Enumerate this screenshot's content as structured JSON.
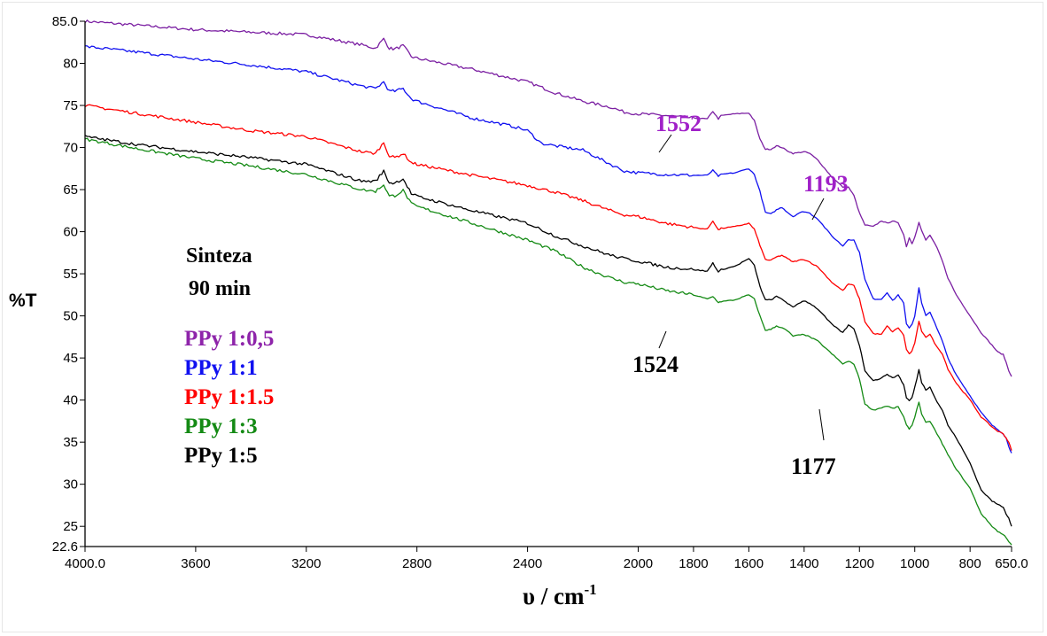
{
  "chart_data": {
    "type": "line",
    "title": "",
    "xlabel": "υ / cm",
    "xlabel_sup": "-1",
    "ylabel": "%T",
    "xlim": [
      4000.0,
      650.0
    ],
    "ylim": [
      22.6,
      85.0
    ],
    "x_reversed": true,
    "grid": false,
    "x_ticks": [
      4000.0,
      3600,
      3200,
      2800,
      2400,
      2000,
      1800,
      1600,
      1400,
      1200,
      1000,
      800,
      650.0
    ],
    "x_tick_labels": [
      "4000.0",
      "3600",
      "3200",
      "2800",
      "2400",
      "2000",
      "1800",
      "1600",
      "1400",
      "1200",
      "1000",
      "800",
      "650.0"
    ],
    "y_ticks": [
      22.6,
      25,
      30,
      35,
      40,
      45,
      50,
      55,
      60,
      65,
      70,
      75,
      80,
      85.0
    ],
    "y_tick_labels": [
      "22.6",
      "25",
      "30",
      "35",
      "40",
      "45",
      "50",
      "55",
      "60",
      "65",
      "70",
      "75",
      "80",
      "85.0"
    ],
    "legend_title": [
      "Sinteza",
      "90 min"
    ],
    "legend_position": "left",
    "series": [
      {
        "name": "PPy 1:0,5",
        "color": "#7b1fa2",
        "x": [
          4000,
          3800,
          3600,
          3400,
          3200,
          3000,
          2950,
          2920,
          2900,
          2880,
          2850,
          2820,
          2800,
          2600,
          2400,
          2300,
          2200,
          2100,
          2050,
          2000,
          1900,
          1800,
          1750,
          1730,
          1710,
          1700,
          1650,
          1600,
          1580,
          1560,
          1540,
          1520,
          1500,
          1480,
          1460,
          1440,
          1420,
          1400,
          1380,
          1350,
          1300,
          1260,
          1240,
          1220,
          1200,
          1180,
          1150,
          1120,
          1100,
          1080,
          1060,
          1040,
          1030,
          1020,
          1010,
          1000,
          985,
          975,
          960,
          945,
          920,
          900,
          880,
          850,
          800,
          760,
          720,
          700,
          680,
          670,
          660,
          650
        ],
        "y": [
          85.0,
          84.5,
          84.0,
          83.7,
          83.4,
          82.2,
          81.8,
          82.9,
          81.8,
          81.7,
          82.1,
          80.8,
          80.6,
          79.3,
          77.8,
          76.5,
          75.5,
          74.8,
          74.2,
          74.0,
          73.8,
          73.5,
          73.4,
          74.3,
          73.4,
          73.8,
          74.0,
          74.1,
          73.2,
          71.0,
          69.8,
          69.8,
          70.2,
          70.0,
          69.6,
          69.3,
          69.4,
          69.5,
          69.3,
          68.5,
          66.5,
          65.3,
          65.3,
          64.3,
          62.2,
          60.8,
          60.6,
          61.3,
          61.0,
          61.3,
          61.0,
          59.7,
          58.2,
          59.3,
          58.6,
          59.4,
          61.1,
          60.1,
          59.0,
          59.6,
          58.1,
          56.5,
          54.5,
          52.5,
          50.0,
          48.0,
          46.5,
          45.7,
          45.4,
          44.5,
          43.5,
          42.8
        ]
      },
      {
        "name": "PPy 1:1",
        "color": "#1010f0",
        "x": [
          4000,
          3800,
          3600,
          3400,
          3200,
          3000,
          2950,
          2920,
          2900,
          2880,
          2850,
          2820,
          2800,
          2600,
          2450,
          2400,
          2350,
          2300,
          2200,
          2100,
          2050,
          2000,
          1900,
          1800,
          1750,
          1730,
          1710,
          1700,
          1650,
          1600,
          1580,
          1560,
          1540,
          1520,
          1500,
          1480,
          1460,
          1440,
          1420,
          1400,
          1380,
          1350,
          1300,
          1260,
          1240,
          1220,
          1200,
          1180,
          1150,
          1120,
          1100,
          1080,
          1060,
          1040,
          1030,
          1020,
          1010,
          1000,
          985,
          975,
          960,
          945,
          920,
          900,
          880,
          850,
          800,
          760,
          720,
          700,
          680,
          670,
          660,
          650
        ],
        "y": [
          82.0,
          81.3,
          80.5,
          79.8,
          79.0,
          77.3,
          77.0,
          77.8,
          76.7,
          76.7,
          77.0,
          75.8,
          75.5,
          73.5,
          72.5,
          72.0,
          70.5,
          70.2,
          69.7,
          68.0,
          67.2,
          67.0,
          66.8,
          66.7,
          66.7,
          67.3,
          66.6,
          66.8,
          67.0,
          67.5,
          66.8,
          64.8,
          62.3,
          62.1,
          62.6,
          62.9,
          62.3,
          61.8,
          62.2,
          62.4,
          62.2,
          61.5,
          59.5,
          58.3,
          59.1,
          59.0,
          57.5,
          54.3,
          52.0,
          52.0,
          52.8,
          51.8,
          52.5,
          51.5,
          49.0,
          48.6,
          49.0,
          50.0,
          53.3,
          51.5,
          50.0,
          50.5,
          48.5,
          47.0,
          45.0,
          43.0,
          40.5,
          38.5,
          37.0,
          36.5,
          36.0,
          35.5,
          34.5,
          33.7
        ]
      },
      {
        "name": "PPy 1:1.5",
        "color": "#ff0000",
        "x": [
          4000,
          3800,
          3600,
          3400,
          3200,
          3000,
          2950,
          2920,
          2900,
          2880,
          2850,
          2820,
          2800,
          2600,
          2400,
          2300,
          2200,
          2100,
          2050,
          2000,
          1900,
          1800,
          1750,
          1730,
          1710,
          1700,
          1650,
          1600,
          1580,
          1560,
          1540,
          1520,
          1500,
          1480,
          1460,
          1440,
          1420,
          1400,
          1380,
          1350,
          1300,
          1260,
          1240,
          1220,
          1200,
          1180,
          1150,
          1120,
          1100,
          1080,
          1060,
          1040,
          1030,
          1020,
          1010,
          1000,
          985,
          975,
          960,
          945,
          920,
          900,
          880,
          850,
          800,
          760,
          720,
          700,
          680,
          670,
          660,
          650
        ],
        "y": [
          75.0,
          74.0,
          73.0,
          72.0,
          71.3,
          69.5,
          69.3,
          70.6,
          69.0,
          68.8,
          69.3,
          68.2,
          68.0,
          66.7,
          65.5,
          64.7,
          63.7,
          62.5,
          62.0,
          61.8,
          61.0,
          60.5,
          60.3,
          61.3,
          60.2,
          60.4,
          60.6,
          61.0,
          60.3,
          58.4,
          56.7,
          56.6,
          57.0,
          57.2,
          56.8,
          56.4,
          56.6,
          56.7,
          56.4,
          55.8,
          54.0,
          53.0,
          53.8,
          53.6,
          52.0,
          49.3,
          47.9,
          47.8,
          48.8,
          48.1,
          48.6,
          47.7,
          46.0,
          45.5,
          45.8,
          46.8,
          49.3,
          48.2,
          47.5,
          47.8,
          46.3,
          45.5,
          43.7,
          42.0,
          40.0,
          38.0,
          36.8,
          36.3,
          36.0,
          35.5,
          35.0,
          34.0
        ]
      },
      {
        "name": "PPy 1:3",
        "color": "#148a14",
        "x": [
          4000,
          3800,
          3600,
          3400,
          3200,
          3000,
          2950,
          2920,
          2900,
          2880,
          2850,
          2820,
          2800,
          2600,
          2400,
          2300,
          2200,
          2100,
          2050,
          2000,
          1900,
          1800,
          1750,
          1730,
          1710,
          1700,
          1650,
          1600,
          1580,
          1560,
          1540,
          1520,
          1500,
          1480,
          1460,
          1440,
          1420,
          1400,
          1380,
          1350,
          1300,
          1260,
          1240,
          1220,
          1200,
          1180,
          1150,
          1120,
          1100,
          1080,
          1060,
          1040,
          1030,
          1020,
          1010,
          1000,
          985,
          975,
          960,
          945,
          920,
          900,
          880,
          850,
          800,
          760,
          720,
          700,
          680,
          670,
          660,
          650
        ],
        "y": [
          71.0,
          69.8,
          68.7,
          67.8,
          66.8,
          65.0,
          64.8,
          65.6,
          64.2,
          64.3,
          64.9,
          63.3,
          63.0,
          61.0,
          59.0,
          57.7,
          55.8,
          54.5,
          54.0,
          53.8,
          53.0,
          52.5,
          52.0,
          52.3,
          51.6,
          51.7,
          51.9,
          52.5,
          52.0,
          50.0,
          48.3,
          48.4,
          48.8,
          48.6,
          48.2,
          47.6,
          47.7,
          47.8,
          47.5,
          47.0,
          45.5,
          44.3,
          44.6,
          44.3,
          42.5,
          39.5,
          38.8,
          39.1,
          39.3,
          39.0,
          39.2,
          38.0,
          37.0,
          36.6,
          37.0,
          38.0,
          39.8,
          38.3,
          37.3,
          37.5,
          36.0,
          34.8,
          33.5,
          31.8,
          29.5,
          26.5,
          25.0,
          24.4,
          24.0,
          23.7,
          23.2,
          22.8
        ]
      },
      {
        "name": "PPy 1:5",
        "color": "#000000",
        "x": [
          4000,
          3800,
          3600,
          3400,
          3200,
          3000,
          2950,
          2920,
          2900,
          2880,
          2850,
          2820,
          2800,
          2600,
          2400,
          2300,
          2200,
          2100,
          2050,
          2000,
          1900,
          1800,
          1750,
          1730,
          1710,
          1700,
          1650,
          1600,
          1580,
          1560,
          1540,
          1520,
          1500,
          1480,
          1460,
          1440,
          1420,
          1400,
          1380,
          1350,
          1300,
          1260,
          1240,
          1220,
          1200,
          1180,
          1150,
          1120,
          1100,
          1080,
          1060,
          1040,
          1030,
          1020,
          1010,
          1000,
          985,
          975,
          960,
          945,
          920,
          900,
          880,
          850,
          800,
          760,
          720,
          700,
          680,
          670,
          660,
          650
        ],
        "y": [
          71.3,
          70.3,
          69.5,
          68.8,
          68.0,
          66.0,
          66.0,
          67.2,
          65.8,
          65.8,
          66.3,
          64.5,
          64.2,
          62.5,
          61.0,
          59.5,
          58.3,
          57.2,
          56.8,
          56.5,
          55.8,
          55.5,
          55.3,
          56.3,
          55.2,
          55.5,
          55.9,
          56.8,
          56.0,
          53.5,
          51.9,
          51.9,
          52.3,
          52.0,
          51.5,
          51.0,
          51.5,
          51.8,
          51.5,
          50.8,
          49.0,
          48.0,
          48.9,
          48.5,
          46.5,
          43.5,
          42.3,
          42.6,
          43.1,
          42.6,
          43.0,
          41.8,
          40.3,
          39.9,
          40.3,
          41.5,
          43.6,
          42.1,
          41.2,
          41.6,
          39.8,
          38.8,
          37.0,
          35.5,
          32.5,
          29.3,
          28.0,
          27.6,
          27.3,
          26.5,
          26.0,
          25.0
        ]
      }
    ],
    "annotations": [
      {
        "text": "1552",
        "color": "#a020c8",
        "x": 1552,
        "y": 69.8
      },
      {
        "text": "1193",
        "color": "#a020c8",
        "x": 1193,
        "y": 60.8
      },
      {
        "text": "1524",
        "color": "#000000",
        "x": 1524,
        "y": 48.3
      },
      {
        "text": "1177",
        "color": "#000000",
        "x": 1177,
        "y": 39.5
      }
    ]
  }
}
